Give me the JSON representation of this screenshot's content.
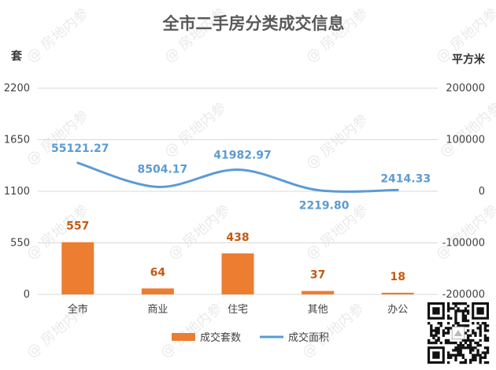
{
  "colors": {
    "bar": "#ed7d31",
    "line": "#5b9bd5",
    "bar_label": "#c55a11",
    "grid": "#d9d9d9"
  },
  "watermark": {
    "text": "@ 房地内参",
    "note": "Repeated diagonal watermark; lettering belongs to a watermark and is reproduced as a picture."
  },
  "qr_code": {
    "icon": "qr-code-icon"
  },
  "chart_data": {
    "type": "bar",
    "title": "全市二手房分类成交信息",
    "categories": [
      "全市",
      "商业",
      "住宅",
      "其他",
      "办公"
    ],
    "y_left": {
      "label": "套",
      "range": [
        0,
        2200
      ],
      "ticks": [
        0,
        550,
        1100,
        1650,
        2200
      ],
      "tick_labels": [
        "0",
        "550",
        "1100",
        "1650",
        "2200"
      ]
    },
    "y_right": {
      "label": "平方米",
      "range": [
        -200000,
        200000
      ],
      "ticks": [
        -200000,
        -100000,
        0,
        100000,
        200000
      ],
      "tick_labels": [
        "-200000",
        "-100000",
        "0",
        "100000",
        "200000"
      ]
    },
    "grid": true,
    "legend_position": "bottom",
    "series": [
      {
        "name": "成交套数",
        "type": "bar",
        "axis": "left",
        "values": [
          557,
          64,
          438,
          37,
          18
        ],
        "labels": [
          "557",
          "64",
          "438",
          "37",
          "18"
        ]
      },
      {
        "name": "成交面积",
        "type": "line",
        "axis": "right",
        "smooth": true,
        "values": [
          55121.27,
          8504.17,
          41982.97,
          2219.8,
          2414.33
        ],
        "labels": [
          "55121.27",
          "8504.17",
          "41982.97",
          "2219.80",
          "2414.33"
        ]
      }
    ]
  }
}
